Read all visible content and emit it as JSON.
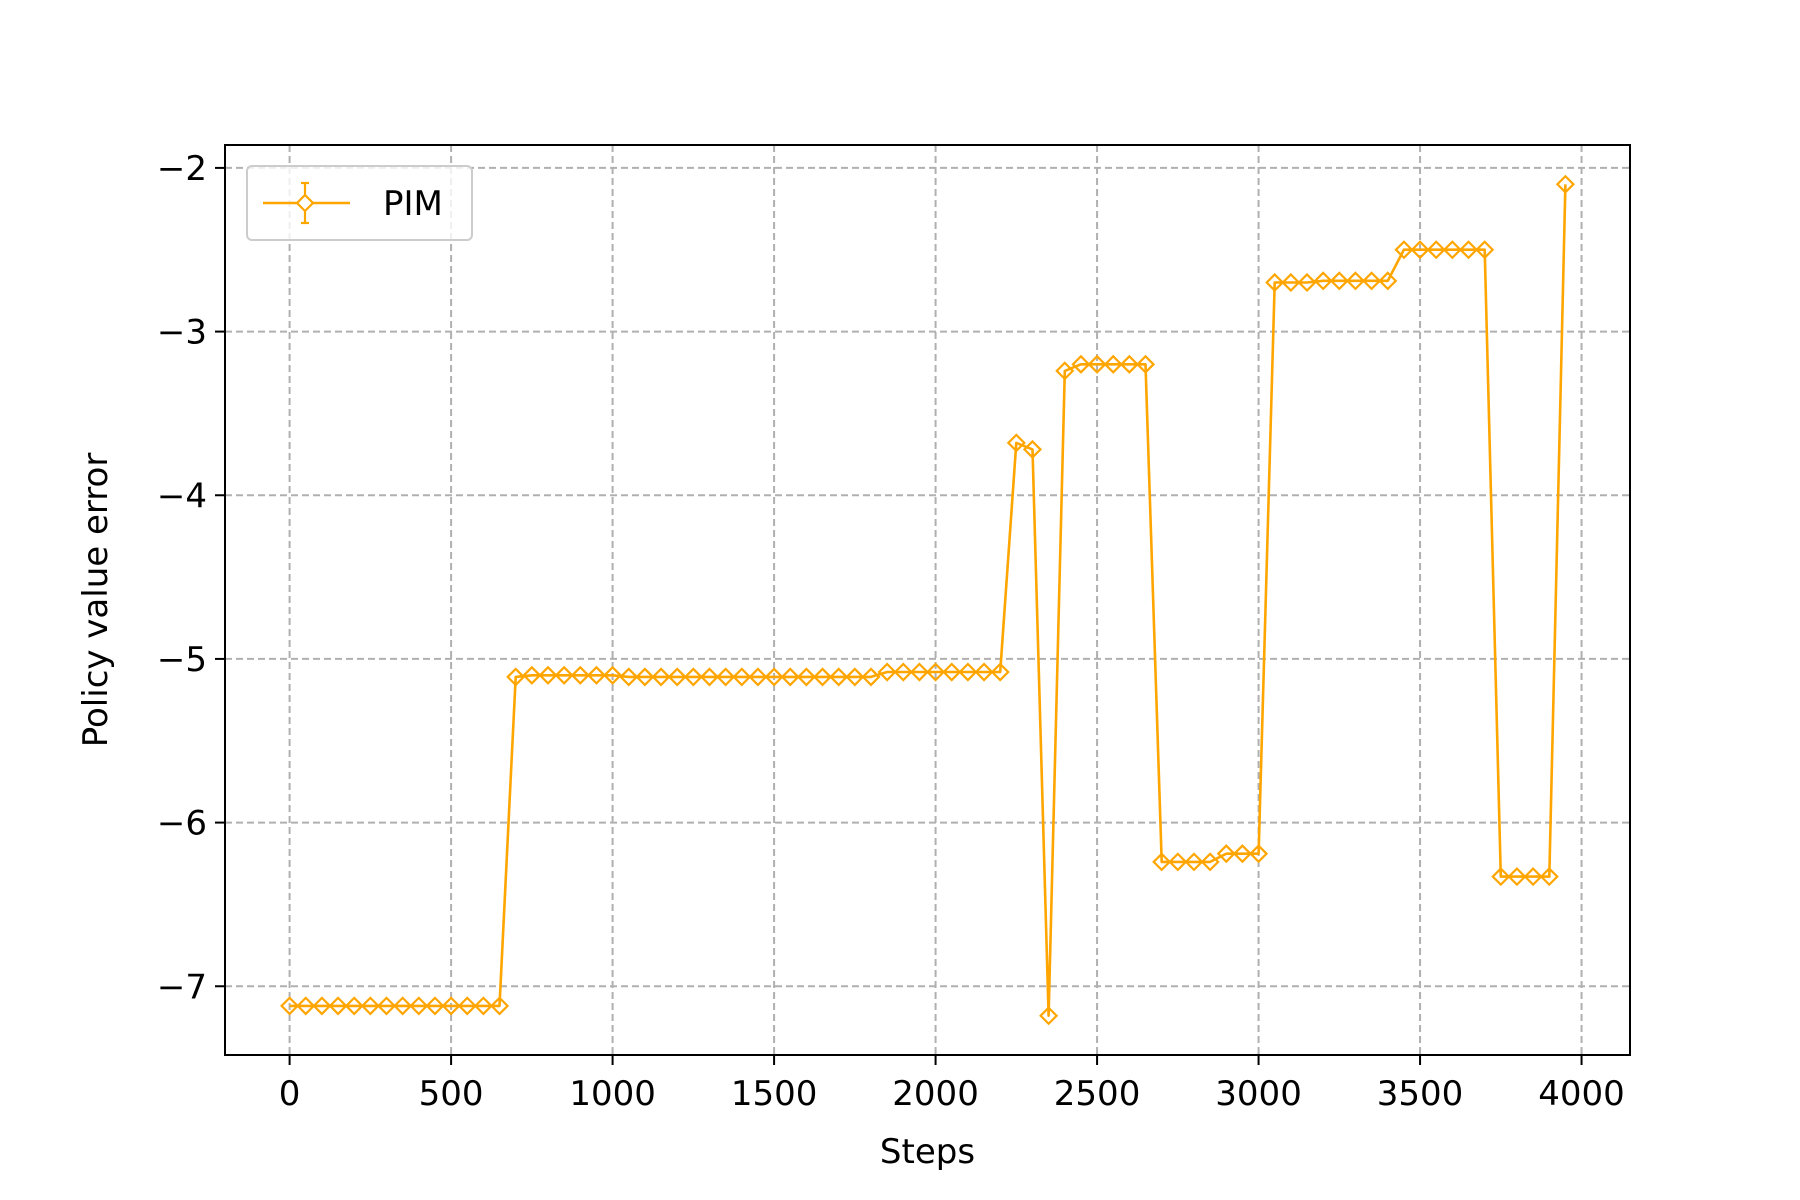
{
  "chart_data": {
    "type": "line",
    "xlabel": "Steps",
    "ylabel": "Policy value error",
    "xlim": [
      -200,
      4150
    ],
    "ylim": [
      -7.42,
      -1.86
    ],
    "xticks": [
      0,
      500,
      1000,
      1500,
      2000,
      2500,
      3000,
      3500,
      4000
    ],
    "xtick_labels": [
      "0",
      "500",
      "1000",
      "1500",
      "2000",
      "2500",
      "3000",
      "3500",
      "4000"
    ],
    "yticks": [
      -2,
      -3,
      -4,
      -5,
      -6,
      -7
    ],
    "ytick_labels": [
      "−2",
      "−3",
      "−4",
      "−5",
      "−6",
      "−7"
    ],
    "grid": true,
    "legend_position": "top-left",
    "series": [
      {
        "name": "PIM",
        "color": "#FFA500",
        "marker": "diamond",
        "x": [
          0,
          50,
          100,
          150,
          200,
          250,
          300,
          350,
          400,
          450,
          500,
          550,
          600,
          650,
          700,
          750,
          800,
          850,
          900,
          950,
          1000,
          1050,
          1100,
          1150,
          1200,
          1250,
          1300,
          1350,
          1400,
          1450,
          1500,
          1550,
          1600,
          1650,
          1700,
          1750,
          1800,
          1850,
          1900,
          1950,
          2000,
          2050,
          2100,
          2150,
          2200,
          2250,
          2300,
          2350,
          2400,
          2450,
          2500,
          2550,
          2600,
          2650,
          2700,
          2750,
          2800,
          2850,
          2900,
          2950,
          3000,
          3050,
          3100,
          3150,
          3200,
          3250,
          3300,
          3350,
          3400,
          3450,
          3500,
          3550,
          3600,
          3650,
          3700,
          3750,
          3800,
          3850,
          3900,
          3950
        ],
        "y": [
          -7.12,
          -7.12,
          -7.12,
          -7.12,
          -7.12,
          -7.12,
          -7.12,
          -7.12,
          -7.12,
          -7.12,
          -7.12,
          -7.12,
          -7.12,
          -7.12,
          -5.11,
          -5.1,
          -5.1,
          -5.1,
          -5.1,
          -5.1,
          -5.1,
          -5.11,
          -5.11,
          -5.11,
          -5.11,
          -5.11,
          -5.11,
          -5.11,
          -5.11,
          -5.11,
          -5.11,
          -5.11,
          -5.11,
          -5.11,
          -5.11,
          -5.11,
          -5.11,
          -5.08,
          -5.08,
          -5.08,
          -5.08,
          -5.08,
          -5.08,
          -5.08,
          -5.08,
          -3.68,
          -3.72,
          -7.18,
          -3.24,
          -3.2,
          -3.2,
          -3.2,
          -3.2,
          -3.2,
          -6.24,
          -6.24,
          -6.24,
          -6.24,
          -6.19,
          -6.19,
          -6.19,
          -2.7,
          -2.7,
          -2.7,
          -2.69,
          -2.69,
          -2.69,
          -2.69,
          -2.69,
          -2.5,
          -2.5,
          -2.5,
          -2.5,
          -2.5,
          -2.5,
          -6.33,
          -6.33,
          -6.33,
          -6.33,
          -2.1
        ]
      }
    ]
  }
}
